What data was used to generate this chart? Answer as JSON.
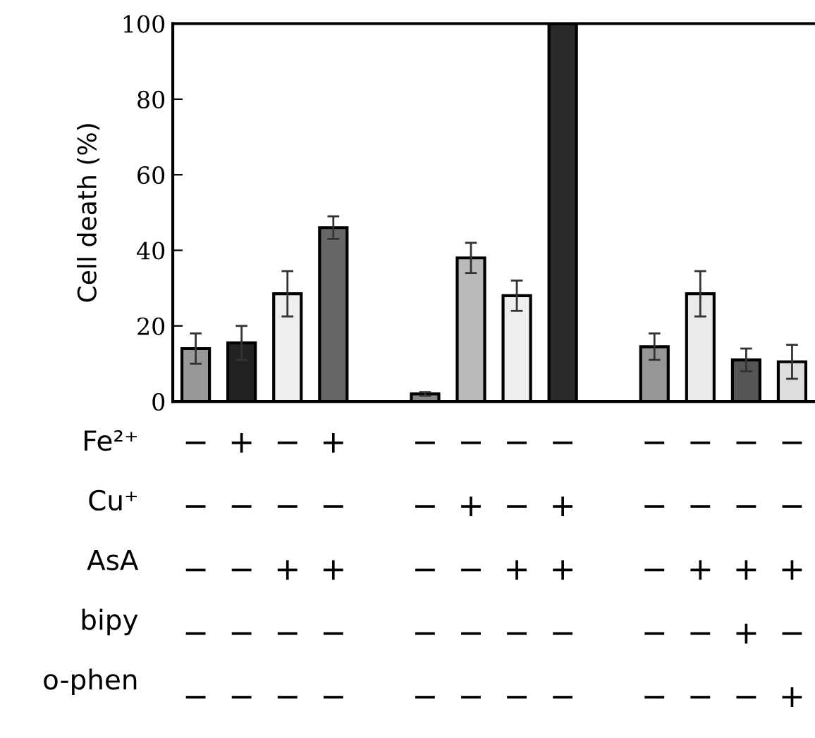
{
  "chart_data": {
    "type": "bar",
    "ylabel": "Cell death (%)",
    "categories": [
      "−\n−\n−\n−\n−",
      "+\n−\n−\n−\n−",
      "−\n−\n+\n−\n−",
      "+\n−\n+\n−\n−",
      null,
      "−\n−\n−\n−\n−",
      "−\n+\n−\n−\n−",
      "−\n−\n+\n−\n−",
      "−\n+\n+\n−\n−",
      null,
      "−\n−\n−\n−\n−",
      "−\n−\n+\n−\n−",
      "−\n−\n+\n+\n−",
      "−\n−\n+\n−\n+"
    ],
    "values": [
      14,
      15.5,
      28.5,
      46,
      null,
      2,
      38,
      28,
      100,
      null,
      14.5,
      28.5,
      11,
      10.5
    ],
    "errors": [
      4,
      4.5,
      6,
      3,
      null,
      0.5,
      4,
      4,
      null,
      null,
      3.5,
      6,
      3,
      4.5
    ],
    "colors": [
      "#999999",
      "#222222",
      "#eeeeee",
      "#666666",
      null,
      "#888888",
      "#bbbbbb",
      "#eeeeee",
      "#2a2a2a",
      null,
      "#969696",
      "#ebebeb",
      "#555555",
      "#dddddd"
    ],
    "ylim": [
      0,
      100
    ],
    "yticks": [
      0,
      20,
      40,
      60,
      80,
      100
    ],
    "grid": false,
    "legend": false,
    "annotations": [
      "Fe²⁺",
      "Cu⁺",
      "AsA",
      "bipy",
      "o-phen"
    ]
  }
}
